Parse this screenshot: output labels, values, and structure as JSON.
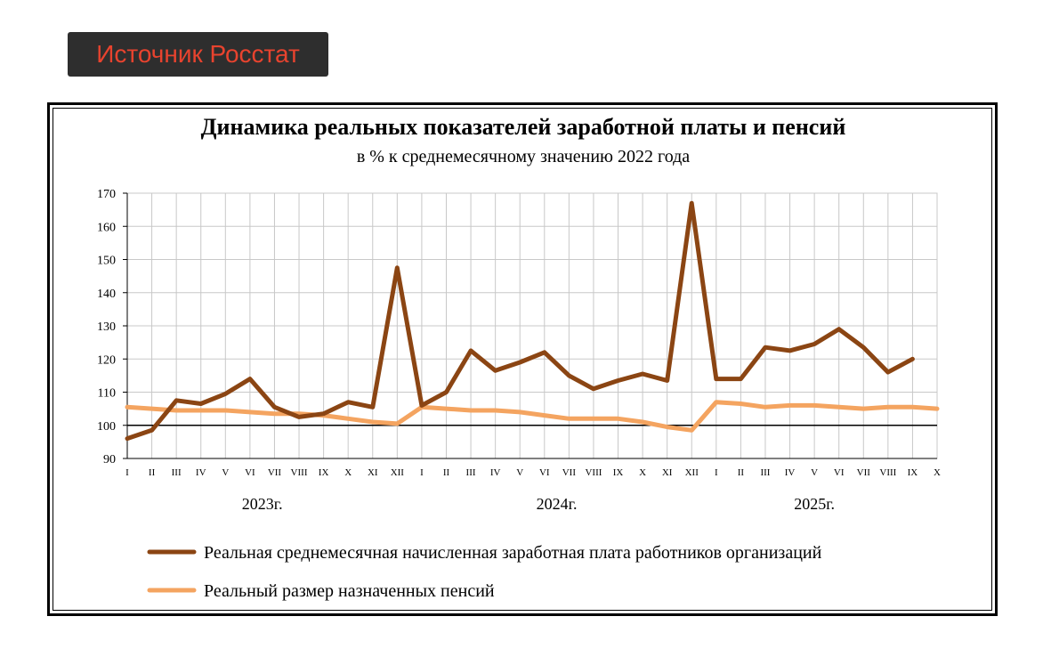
{
  "badge": {
    "label": "Источник Росстат"
  },
  "chart_data": {
    "type": "line",
    "title": "Динамика реальных показателей заработной платы и пенсий",
    "subtitle": "в % к среднемесячному значению 2022 года",
    "ylim": [
      90,
      170
    ],
    "yticks": [
      90,
      100,
      110,
      120,
      130,
      140,
      150,
      160,
      170
    ],
    "grid": true,
    "baseline": 100,
    "legend_position": "bottom",
    "x": [
      "I",
      "II",
      "III",
      "IV",
      "V",
      "VI",
      "VII",
      "VIII",
      "IX",
      "X",
      "XI",
      "XII",
      "I",
      "II",
      "III",
      "IV",
      "V",
      "VI",
      "VII",
      "VIII",
      "IX",
      "X",
      "XI",
      "XII",
      "I",
      "II",
      "III",
      "IV",
      "V",
      "VI",
      "VII",
      "VIII",
      "IX",
      "X"
    ],
    "years": [
      {
        "label": "2023г.",
        "center_index": 5.5
      },
      {
        "label": "2024г.",
        "center_index": 17.5
      },
      {
        "label": "2025г.",
        "center_index": 28
      }
    ],
    "series": [
      {
        "name": "Реальная среднемесячная начисленная заработная плата работников организаций",
        "color": "#8b4513",
        "values": [
          96,
          98.5,
          107.5,
          106.5,
          109.5,
          114,
          105.5,
          102.5,
          103.5,
          107,
          105.5,
          147.5,
          106,
          110,
          122.5,
          116.5,
          119,
          122,
          115,
          111,
          113.5,
          115.5,
          113.5,
          167,
          114,
          114,
          123.5,
          122.5,
          124.5,
          129,
          123.5,
          116,
          120,
          null
        ]
      },
      {
        "name": "Реальный размер назначенных пенсий",
        "color": "#f4a460",
        "values": [
          105.5,
          105,
          104.5,
          104.5,
          104.5,
          104,
          103.5,
          103.5,
          103,
          102,
          101,
          100.5,
          105.5,
          105,
          104.5,
          104.5,
          104,
          103,
          102,
          102,
          102,
          101,
          99.5,
          98.5,
          107,
          106.5,
          105.5,
          106,
          106,
          105.5,
          105,
          105.5,
          105.5,
          105
        ]
      }
    ]
  }
}
